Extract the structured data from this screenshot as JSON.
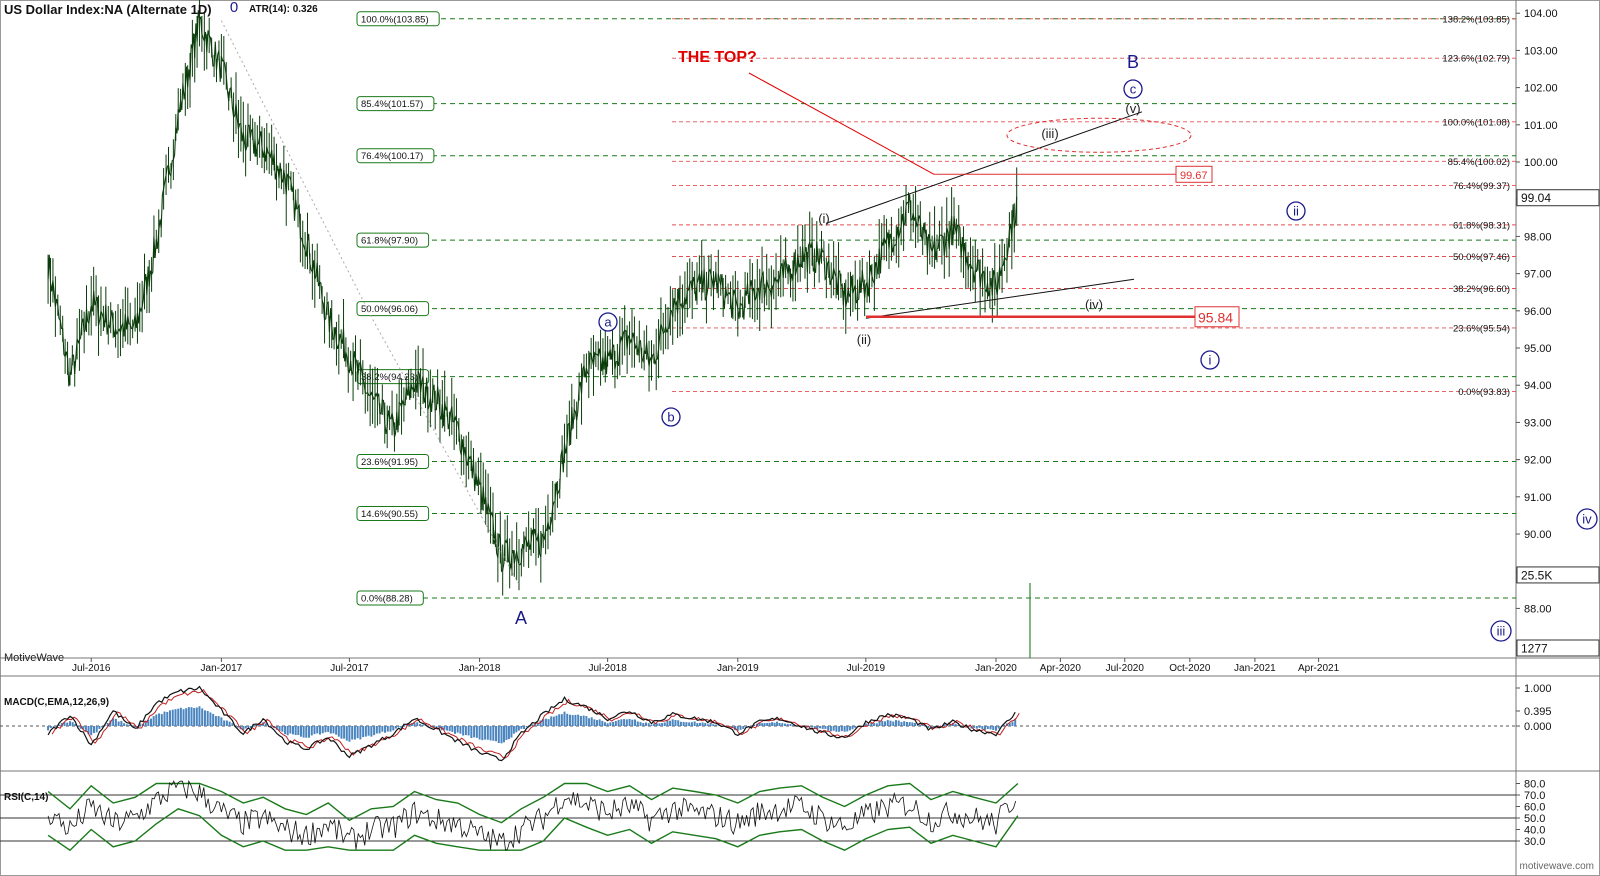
{
  "header": {
    "title": "US Dollar Index:NA (Alternate 1D)",
    "atr": "ATR(14): 0.326",
    "brand": "MotiveWave",
    "site": "motivewave.com"
  },
  "annotations": {
    "the_top": "THE TOP?",
    "major_A": "A",
    "major_B": "B",
    "top_wave_label": "0",
    "minor_a": "a",
    "minor_b": "b",
    "minor_c": "c",
    "sub_i": "(i)",
    "sub_ii": "(ii)",
    "sub_iii": "(iii)",
    "sub_iv": "(iv)",
    "sub_v": "(v)",
    "circ_i": "i",
    "circ_ii": "ii",
    "circ_iii": "iii",
    "circ_iv": "iv",
    "level_upper": "99.67",
    "level_lower": "95.84"
  },
  "price_badges": {
    "last": "99.04",
    "volume": "25.5K",
    "other": "1277"
  },
  "chart_data": [
    {
      "type": "line",
      "title": "US Dollar Index:NA (Alternate 1D)",
      "x_ticks": [
        "Jul-2016",
        "Jan-2017",
        "Jul-2017",
        "Jan-2018",
        "Jul-2018",
        "Jan-2019",
        "Jul-2019",
        "Jan-2020",
        "Apr-2020",
        "Jul-2020",
        "Oct-2020",
        "Jan-2021",
        "Apr-2021"
      ],
      "y_ticks": [
        "88.00",
        "89.00",
        "90.00",
        "91.00",
        "92.00",
        "93.00",
        "94.00",
        "95.00",
        "96.00",
        "97.00",
        "98.00",
        "99.00",
        "100.00",
        "101.00",
        "102.00",
        "103.00",
        "104.00"
      ],
      "ylim": [
        87.2,
        104.3
      ],
      "series": [
        {
          "x": [
            "2016-05-01",
            "2016-06-01",
            "2016-07-01",
            "2016-08-01",
            "2016-09-01",
            "2016-10-01",
            "2016-11-01",
            "2016-12-01",
            "2017-01-01",
            "2017-02-01",
            "2017-03-01",
            "2017-04-01",
            "2017-05-01",
            "2017-06-01",
            "2017-07-01",
            "2017-08-01",
            "2017-09-01",
            "2017-10-01",
            "2017-11-01",
            "2017-12-01",
            "2018-01-01",
            "2018-02-01",
            "2018-03-01",
            "2018-04-01",
            "2018-05-01",
            "2018-06-01",
            "2018-07-01",
            "2018-08-01",
            "2018-09-01",
            "2018-10-01",
            "2018-11-01",
            "2018-12-01",
            "2019-01-01",
            "2019-02-01",
            "2019-03-01",
            "2019-04-01",
            "2019-05-01",
            "2019-06-01",
            "2019-07-01",
            "2019-08-01",
            "2019-09-01",
            "2019-10-01",
            "2019-11-01",
            "2019-12-01",
            "2020-01-01",
            "2020-02-01"
          ],
          "values": [
            97.3,
            94.2,
            96.2,
            95.6,
            95.5,
            97.8,
            101.2,
            103.8,
            102.5,
            100.6,
            100.4,
            99.6,
            97.9,
            95.8,
            94.8,
            93.6,
            92.8,
            94.1,
            93.6,
            92.8,
            91.2,
            89.4,
            89.6,
            89.8,
            92.2,
            94.5,
            94.6,
            95.3,
            94.6,
            96.2,
            96.6,
            96.8,
            96.0,
            96.7,
            96.8,
            97.5,
            97.4,
            96.4,
            96.7,
            97.8,
            98.8,
            97.5,
            98.2,
            97.2,
            96.6,
            99.0
          ]
        }
      ],
      "fib_left": [
        {
          "label": "100.0%(103.85)",
          "value": 103.85
        },
        {
          "label": "85.4%(101.57)",
          "value": 101.57
        },
        {
          "label": "76.4%(100.17)",
          "value": 100.17
        },
        {
          "label": "61.8%(97.90)",
          "value": 97.9
        },
        {
          "label": "50.0%(96.06)",
          "value": 96.06
        },
        {
          "label": "38.2%(94.23)",
          "value": 94.23
        },
        {
          "label": "23.6%(91.95)",
          "value": 91.95
        },
        {
          "label": "14.6%(90.55)",
          "value": 90.55
        },
        {
          "label": "0.0%(88.28)",
          "value": 88.28
        }
      ],
      "fib_right": [
        {
          "label": "138.2%(103.85)",
          "value": 103.85
        },
        {
          "label": "123.6%(102.79)",
          "value": 102.79
        },
        {
          "label": "100.0%(101.08)",
          "value": 101.08
        },
        {
          "label": "85.4%(100.02)",
          "value": 100.02
        },
        {
          "label": "76.4%(99.37)",
          "value": 99.37
        },
        {
          "label": "61.8%(98.31)",
          "value": 98.31
        },
        {
          "label": "50.0%(97.46)",
          "value": 97.46
        },
        {
          "label": "38.2%(96.60)",
          "value": 96.6
        },
        {
          "label": "23.6%(95.54)",
          "value": 95.54
        },
        {
          "label": "0.0%(93.83)",
          "value": 93.83
        }
      ],
      "colors": {
        "price": "#0b3d0b",
        "fib_left": "#1a7a1a",
        "fib_right": "#e05050",
        "waves": "#1a1a8c",
        "top": "#e00000"
      }
    },
    {
      "type": "line",
      "title": "MACD(C,EMA,12,26,9)",
      "y_ticks": [
        "1.000",
        "0.395",
        "0.000"
      ],
      "ylim": [
        -1.0,
        1.15
      ],
      "series": [
        {
          "name": "MACD",
          "values": [
            -0.2,
            0.3,
            -0.5,
            0.4,
            -0.1,
            0.6,
            0.9,
            1.0,
            0.4,
            -0.2,
            0.2,
            -0.4,
            -0.6,
            -0.3,
            -0.8,
            -0.5,
            -0.2,
            0.2,
            -0.1,
            -0.4,
            -0.7,
            -0.9,
            -0.2,
            0.3,
            0.7,
            0.5,
            0.2,
            0.4,
            0.1,
            0.3,
            0.2,
            0.1,
            -0.2,
            0.1,
            0.2,
            0.0,
            -0.2,
            -0.3,
            0.1,
            0.3,
            0.2,
            -0.1,
            0.1,
            -0.1,
            -0.2,
            0.4
          ]
        }
      ]
    },
    {
      "type": "line",
      "title": "RSI(C,14)",
      "y_ticks": [
        "80.0",
        "70.0",
        "60.0",
        "50.0",
        "40.0",
        "30.0"
      ],
      "ylim": [
        20,
        85
      ],
      "series": [
        {
          "name": "RSI",
          "values": [
            55,
            40,
            60,
            45,
            50,
            65,
            78,
            72,
            55,
            45,
            50,
            40,
            35,
            45,
            30,
            40,
            42,
            55,
            48,
            45,
            35,
            28,
            40,
            50,
            70,
            62,
            55,
            60,
            48,
            58,
            55,
            52,
            45,
            55,
            58,
            60,
            50,
            42,
            52,
            60,
            62,
            48,
            55,
            50,
            45,
            72
          ]
        }
      ]
    }
  ]
}
